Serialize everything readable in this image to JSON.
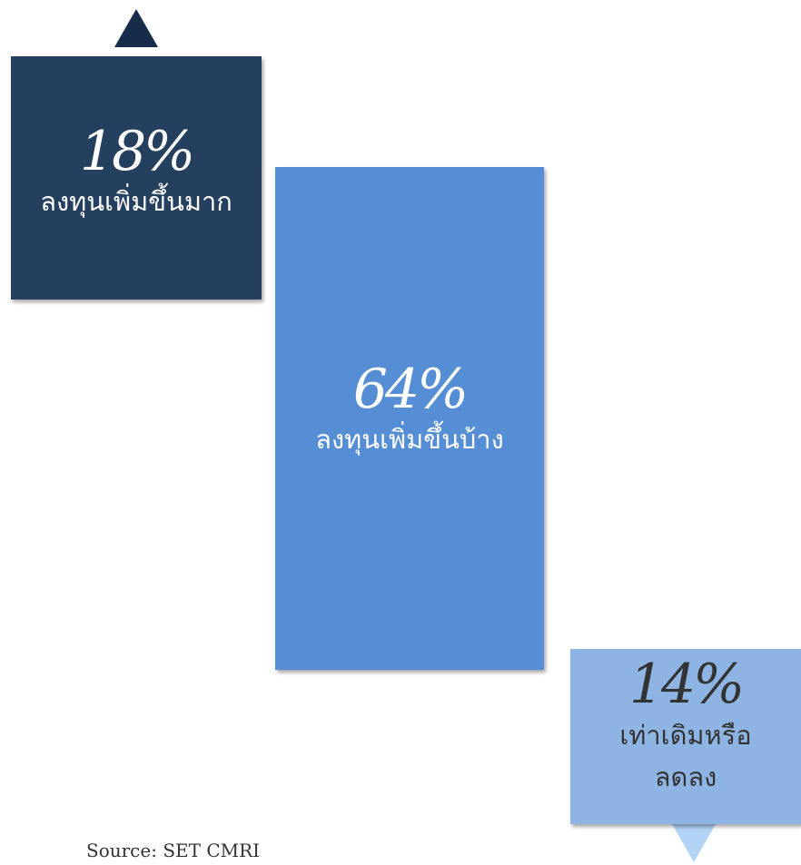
{
  "items": [
    {
      "percent": "18%",
      "label": [
        "ลงทุนเพิ่มขึ้นมาก"
      ]
    },
    {
      "percent": "64%",
      "label": [
        "ลงทุนเพิ่มขึ้นบ้าง"
      ]
    },
    {
      "percent": "14%",
      "label": [
        "เท่าเดิมหรือ",
        "ลดลง"
      ]
    }
  ],
  "source": "Source: SET CMRI"
}
